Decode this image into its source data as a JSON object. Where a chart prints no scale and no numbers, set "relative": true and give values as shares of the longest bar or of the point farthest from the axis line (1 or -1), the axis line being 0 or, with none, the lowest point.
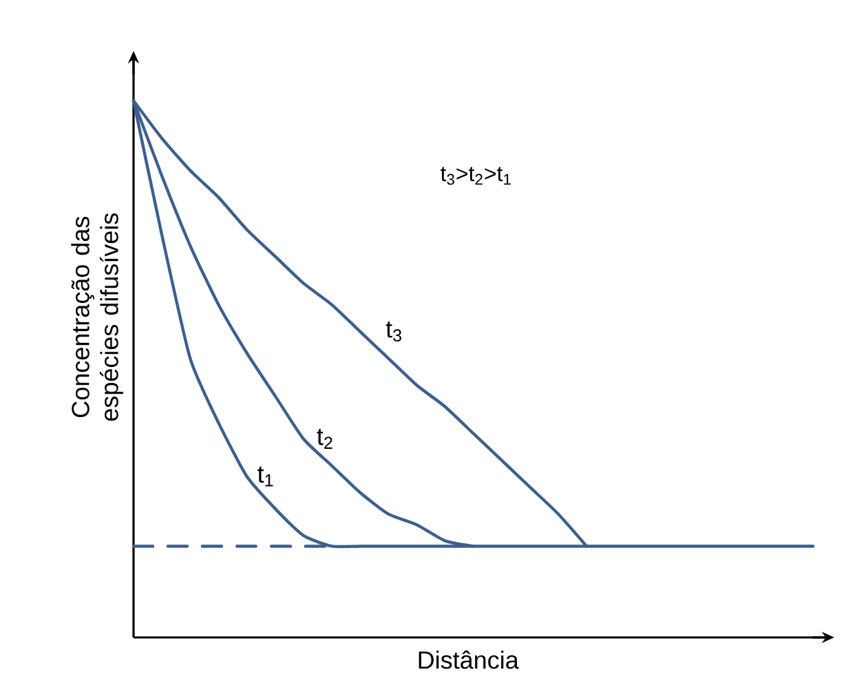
{
  "chart_data": {
    "type": "line",
    "relative": true,
    "xlabel": "Distância",
    "ylabel": "Concentração das espécies difusíveis",
    "annotations": [
      "t$_{3}$>t$_{2}$>t$_{1}$"
    ],
    "categories": [
      null,
      null,
      null,
      null,
      null,
      null,
      null,
      null,
      null,
      null,
      null,
      null,
      null,
      null,
      null,
      null,
      null,
      null,
      null,
      null,
      null,
      null,
      null,
      null,
      null
    ],
    "series": [
      {
        "color": "#3d5f8f",
        "line_style": "dashed",
        "values": [
          0.17,
          0.17,
          0.17,
          0.17,
          0.17,
          0.17,
          0.17,
          0.17,
          null,
          null,
          null,
          null,
          null,
          null,
          null,
          null,
          null,
          null,
          null,
          null,
          null,
          null,
          null,
          null,
          null
        ]
      },
      {
        "name": "t$_{1}$",
        "color": "#3d5f8f",
        "values": [
          1,
          0.75,
          0.52,
          0.4,
          0.3,
          0.24,
          0.19,
          0.17,
          0.17,
          0.17,
          0.17,
          0.17,
          0.17,
          0.17,
          0.17,
          0.17,
          0.17,
          0.17,
          0.17,
          0.17,
          0.17,
          0.17,
          0.17,
          0.17,
          0.17
        ]
      },
      {
        "name": "t$_{2}$",
        "color": "#3d5f8f",
        "values": [
          1,
          0.86,
          0.73,
          0.62,
          0.53,
          0.45,
          0.37,
          0.32,
          0.27,
          0.23,
          0.21,
          0.18,
          0.17,
          null,
          null,
          null,
          null,
          null,
          null,
          null,
          null,
          null,
          null,
          null,
          null
        ]
      },
      {
        "name": "t$_{3}$",
        "color": "#3d5f8f",
        "values": [
          1,
          0.93,
          0.87,
          0.82,
          0.76,
          0.71,
          0.66,
          0.62,
          0.57,
          0.52,
          0.47,
          0.43,
          0.38,
          0.33,
          0.28,
          0.23,
          0.17,
          null,
          null,
          null,
          null,
          null,
          null,
          null,
          null
        ]
      }
    ]
  }
}
